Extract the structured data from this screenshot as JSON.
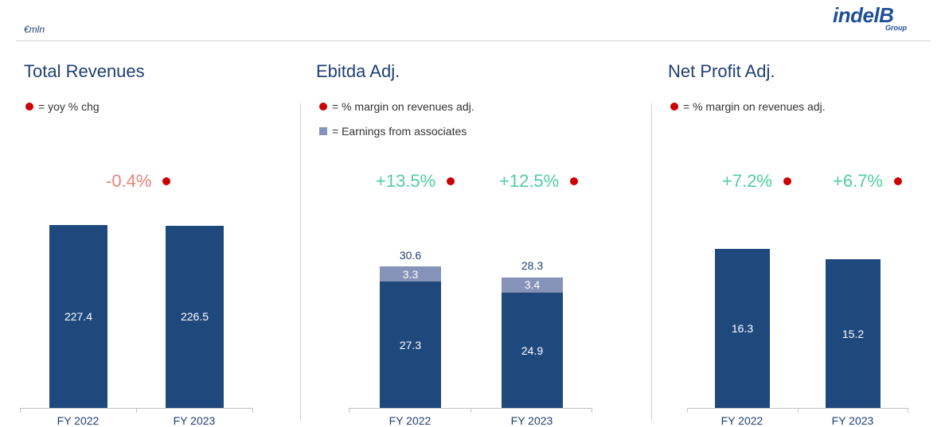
{
  "header": {
    "unit": "€mln",
    "logo_main": "indelB",
    "logo_sub": "Group"
  },
  "colors": {
    "main_bar": "#1f497d",
    "associates_bar": "#8693b8",
    "dot": "#cc0000",
    "negative_pct": "#e8837a",
    "positive_pct": "#4fcf9f"
  },
  "panels": [
    {
      "title": "Total Revenues",
      "legend": [
        {
          "marker": "dot",
          "text": "= yoy % chg"
        }
      ],
      "pct_labels": [
        "",
        "-0.4%"
      ],
      "categories": [
        "FY 2022",
        "FY 2023"
      ],
      "main_values": [
        "227.4",
        "226.5"
      ]
    },
    {
      "title": "Ebitda Adj.",
      "legend": [
        {
          "marker": "dot",
          "text": "= % margin on revenues adj."
        },
        {
          "marker": "square",
          "text": "= Earnings from associates"
        }
      ],
      "pct_labels": [
        "+13.5%",
        "+12.5%"
      ],
      "categories": [
        "FY 2022",
        "FY 2023"
      ],
      "main_values": [
        "27.3",
        "24.9"
      ],
      "assoc_values": [
        "3.3",
        "3.4"
      ],
      "totals": [
        "30.6",
        "28.3"
      ]
    },
    {
      "title": "Net Profit Adj.",
      "legend": [
        {
          "marker": "dot",
          "text": "= % margin on revenues adj."
        }
      ],
      "pct_labels": [
        "+7.2%",
        "+6.7%"
      ],
      "categories": [
        "FY 2022",
        "FY 2023"
      ],
      "main_values": [
        "16.3",
        "15.2"
      ]
    }
  ],
  "chart_data": [
    {
      "type": "bar",
      "title": "Total Revenues",
      "categories": [
        "FY 2022",
        "FY 2023"
      ],
      "series": [
        {
          "name": "",
          "values": [
            227.4,
            226.5
          ]
        }
      ],
      "annotations": {
        "yoy_pct_chg": [
          null,
          -0.4
        ]
      },
      "ylim": [
        0,
        250
      ]
    },
    {
      "type": "bar",
      "title": "Ebitda Adj.",
      "stacked": true,
      "categories": [
        "FY 2022",
        "FY 2023"
      ],
      "series": [
        {
          "name": "",
          "values": [
            27.3,
            24.9
          ]
        },
        {
          "name": "Earnings from associates",
          "values": [
            3.3,
            3.4
          ]
        }
      ],
      "totals": [
        30.6,
        28.3
      ],
      "annotations": {
        "margin_pct": [
          13.5,
          12.5
        ]
      },
      "ylim": [
        0,
        50
      ]
    },
    {
      "type": "bar",
      "title": "Net Profit Adj.",
      "categories": [
        "FY 2022",
        "FY 2023"
      ],
      "series": [
        {
          "name": "",
          "values": [
            16.3,
            15.2
          ]
        }
      ],
      "annotations": {
        "margin_pct": [
          7.2,
          6.7
        ]
      },
      "ylim": [
        0,
        20.6
      ]
    }
  ]
}
